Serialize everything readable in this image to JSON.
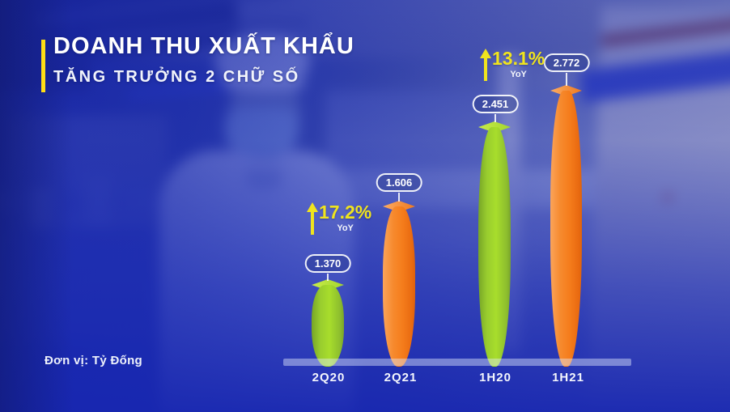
{
  "header": {
    "title": "DOANH THU XUẤT KHẨU",
    "subtitle": "TĂNG TRƯỞNG 2 CHỮ SỐ"
  },
  "unit_note": "Đơn vị: Tỷ Đống",
  "chart_data": {
    "type": "bar",
    "title": "DOANH THU XUẤT KHẨU",
    "subtitle": "TĂNG TRƯỞNG 2 CHỮ SỐ",
    "categories": [
      "2Q20",
      "2Q21",
      "1H20",
      "1H21"
    ],
    "values": [
      1370,
      1606,
      2451,
      2772
    ],
    "value_labels": [
      "1.370",
      "1.606",
      "2.451",
      "2.772"
    ],
    "unit": "Tỷ Đống",
    "bar_colors": [
      "#9ACD2C",
      "#F5821F",
      "#9ACD2C",
      "#F5821F"
    ],
    "legend_position": "none",
    "gridlines": false,
    "baseline_only": true,
    "annotations": [
      {
        "label": "17.2%",
        "sublabel": "YoY",
        "applies_to": "2Q21 vs 2Q20"
      },
      {
        "label": "13.1%",
        "sublabel": "YoY",
        "applies_to": "1H21 vs 1H20"
      }
    ]
  },
  "colors": {
    "background_blue": "#2337B5",
    "accent_yellow": "#F0E41E",
    "title_accent_bar": "#FFDD15",
    "green_bar": "#9ACD2C",
    "orange_bar": "#F5821F",
    "baseline": "rgba(225,232,252,0.45)"
  }
}
